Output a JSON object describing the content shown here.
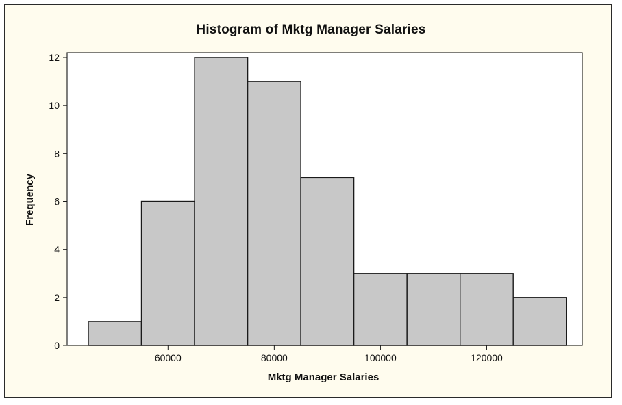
{
  "chart_data": {
    "type": "bar",
    "title": "Histogram of Mktg Manager Salaries",
    "xlabel": "Mktg Manager Salaries",
    "ylabel": "Frequency",
    "bin_edges": [
      45000,
      55000,
      65000,
      75000,
      85000,
      95000,
      105000,
      115000,
      125000,
      135000
    ],
    "values": [
      1,
      6,
      12,
      11,
      7,
      3,
      3,
      3,
      2
    ],
    "xlim": [
      41000,
      138000
    ],
    "ylim": [
      0,
      12.2
    ],
    "x_ticks": [
      60000,
      80000,
      100000,
      120000
    ],
    "y_ticks": [
      0,
      2,
      4,
      6,
      8,
      10,
      12
    ],
    "grid": false,
    "bar_color": "#c8c8c8",
    "frame_background": "#fffcee",
    "plot_background": "#ffffff"
  }
}
